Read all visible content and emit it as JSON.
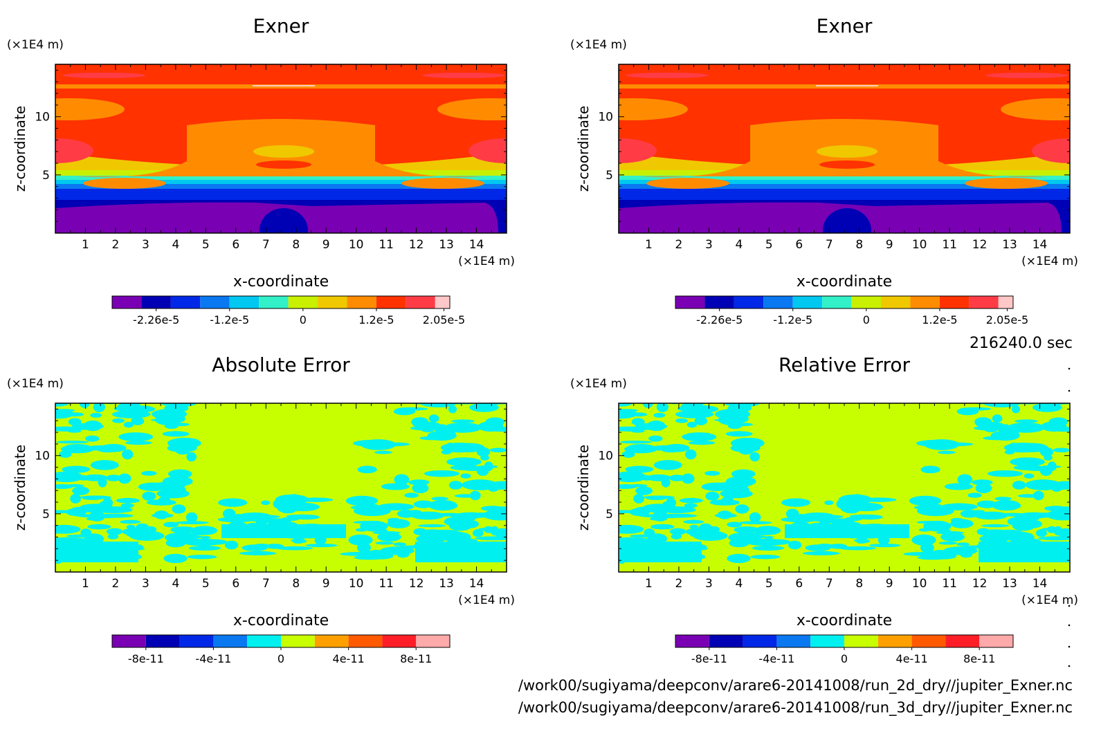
{
  "timestamp": "216240.0 sec",
  "files": [
    "/work00/sugiyama/deepconv/arare6-20141008/run_2d_dry//jupiter_Exner.nc",
    "/work00/sugiyama/deepconv/arare6-20141008/run_3d_dry//jupiter_Exner.nc"
  ],
  "chart_data": [
    {
      "type": "heatmap",
      "title": "Exner",
      "xlabel": "x-coordinate",
      "ylabel": "z-coordinate",
      "x_unit": "(×1E4 m)",
      "y_unit": "(×1E4 m)",
      "xlim": [
        0,
        15
      ],
      "ylim": [
        0,
        14.5
      ],
      "x_ticks": [
        "1",
        "2",
        "3",
        "4",
        "5",
        "6",
        "7",
        "8",
        "9",
        "10",
        "11",
        "12",
        "13",
        "14"
      ],
      "y_ticks": [
        "5",
        "10"
      ],
      "colorbar": {
        "colors": [
          "#7a00b4",
          "#0000b4",
          "#0028e6",
          "#0a78f0",
          "#00c8f0",
          "#32f0c8",
          "#c8f000",
          "#f0c800",
          "#ff8c00",
          "#ff3200",
          "#ff3c46",
          "#ffc8c8"
        ],
        "labels": [
          "-2.26e-5",
          "-1.2e-5",
          "0",
          "1.2e-5",
          "2.05e-5"
        ]
      }
    },
    {
      "type": "heatmap",
      "title": "Exner",
      "xlabel": "x-coordinate",
      "ylabel": "z-coordinate",
      "x_unit": "(×1E4 m)",
      "y_unit": "(×1E4 m)",
      "xlim": [
        0,
        15
      ],
      "ylim": [
        0,
        14.5
      ],
      "x_ticks": [
        "1",
        "2",
        "3",
        "4",
        "5",
        "6",
        "7",
        "8",
        "9",
        "10",
        "11",
        "12",
        "13",
        "14"
      ],
      "y_ticks": [
        "5",
        "10"
      ],
      "colorbar": {
        "colors": [
          "#7a00b4",
          "#0000b4",
          "#0028e6",
          "#0a78f0",
          "#00c8f0",
          "#32f0c8",
          "#c8f000",
          "#f0c800",
          "#ff8c00",
          "#ff3200",
          "#ff3c46",
          "#ffc8c8"
        ],
        "labels": [
          "-2.26e-5",
          "-1.2e-5",
          "0",
          "1.2e-5",
          "2.05e-5"
        ]
      }
    },
    {
      "type": "heatmap",
      "title": "Absolute Error",
      "xlabel": "x-coordinate",
      "ylabel": "z-coordinate",
      "x_unit": "(×1E4 m)",
      "y_unit": "(×1E4 m)",
      "xlim": [
        0,
        15
      ],
      "ylim": [
        0,
        14.5
      ],
      "x_ticks": [
        "1",
        "2",
        "3",
        "4",
        "5",
        "6",
        "7",
        "8",
        "9",
        "10",
        "11",
        "12",
        "13",
        "14"
      ],
      "y_ticks": [
        "5",
        "10"
      ],
      "colorbar": {
        "colors": [
          "#7a00b4",
          "#0000b4",
          "#0028e6",
          "#0a78f0",
          "#00f0f0",
          "#c8ff00",
          "#ffa000",
          "#ff5a00",
          "#ff1e28",
          "#ffaaaa"
        ],
        "labels": [
          "-8e-11",
          "-4e-11",
          "0",
          "4e-11",
          "8e-11"
        ]
      }
    },
    {
      "type": "heatmap",
      "title": "Relative Error",
      "xlabel": "x-coordinate",
      "ylabel": "z-coordinate",
      "x_unit": "(×1E4 m)",
      "y_unit": "(×1E4 m)",
      "xlim": [
        0,
        15
      ],
      "ylim": [
        0,
        14.5
      ],
      "x_ticks": [
        "1",
        "2",
        "3",
        "4",
        "5",
        "6",
        "7",
        "8",
        "9",
        "10",
        "11",
        "12",
        "13",
        "14"
      ],
      "y_ticks": [
        "5",
        "10"
      ],
      "colorbar": {
        "colors": [
          "#7a00b4",
          "#0000b4",
          "#0028e6",
          "#0a78f0",
          "#00f0f0",
          "#c8ff00",
          "#ffa000",
          "#ff5a00",
          "#ff1e28",
          "#ffaaaa"
        ],
        "labels": [
          "-8e-11",
          "-4e-11",
          "0",
          "4e-11",
          "8e-11"
        ]
      }
    }
  ]
}
